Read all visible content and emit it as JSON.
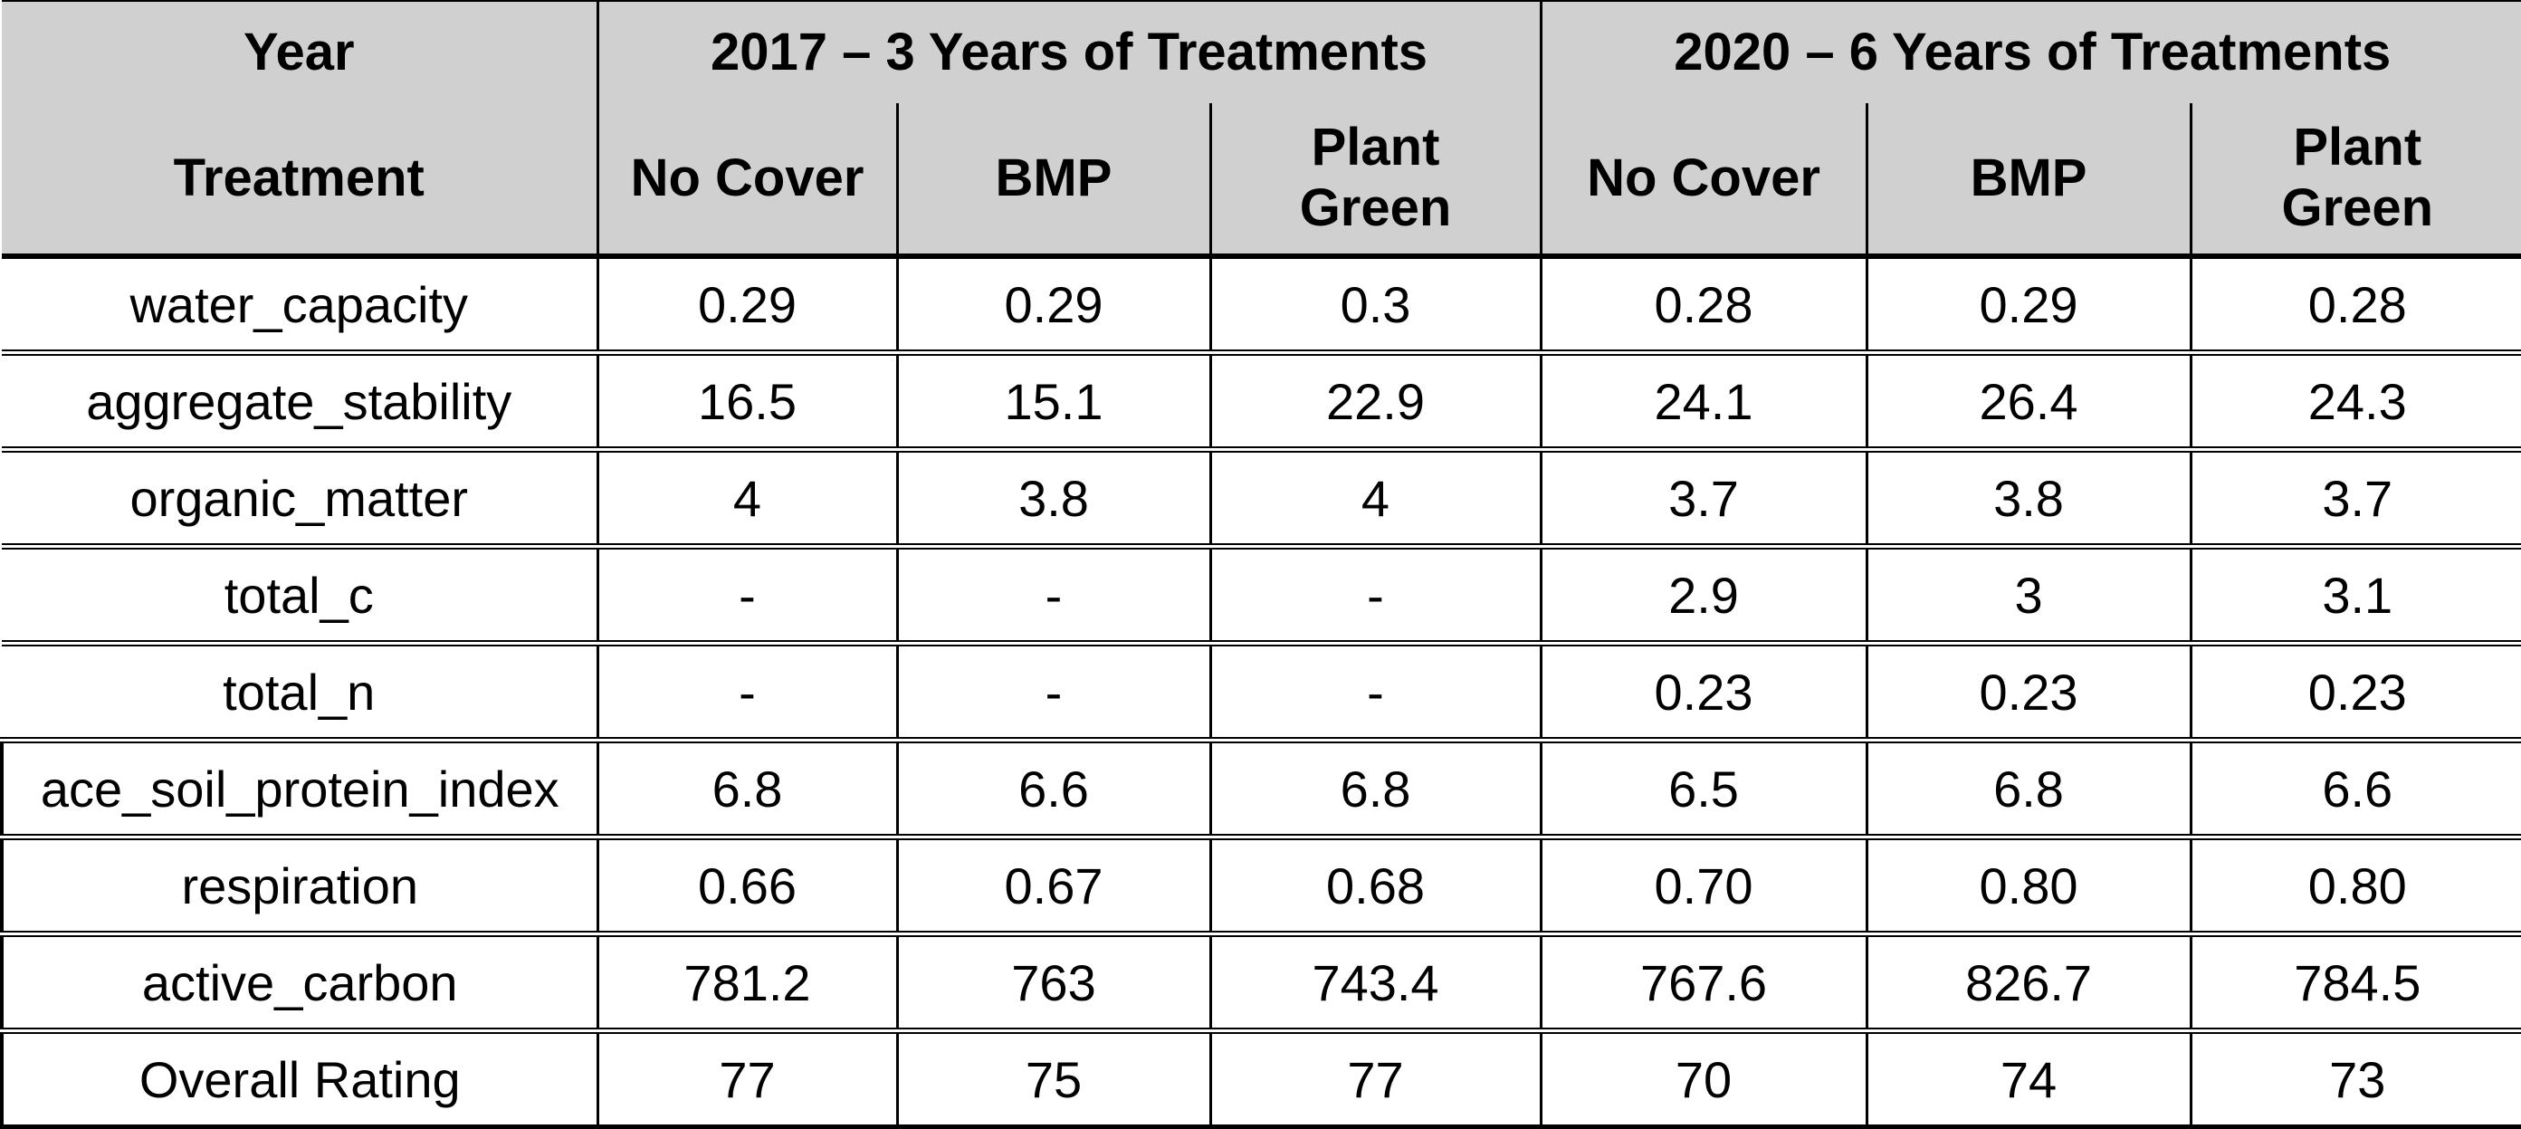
{
  "colors": {
    "header_bg": "#d0d0d0",
    "row_bg": "#ffffff",
    "border": "#000000",
    "text": "#000000"
  },
  "chart_data": {
    "type": "table",
    "header": {
      "corner_top": "Year",
      "corner_bottom": "Treatment",
      "groups": [
        {
          "label": "2017 – 3 Years of Treatments",
          "subcolumns": [
            "No Cover",
            "BMP",
            "Plant Green"
          ]
        },
        {
          "label": "2020 – 6 Years of Treatments",
          "subcolumns": [
            "No Cover",
            "BMP",
            "Plant Green"
          ]
        }
      ]
    },
    "rows": [
      {
        "label": "water_capacity",
        "values": [
          "0.29",
          "0.29",
          "0.3",
          "0.28",
          "0.29",
          "0.28"
        ]
      },
      {
        "label": "aggregate_stability",
        "values": [
          "16.5",
          "15.1",
          "22.9",
          "24.1",
          "26.4",
          "24.3"
        ]
      },
      {
        "label": "organic_matter",
        "values": [
          "4",
          "3.8",
          "4",
          "3.7",
          "3.8",
          "3.7"
        ]
      },
      {
        "label": "total_c",
        "values": [
          "-",
          "-",
          "-",
          "2.9",
          "3",
          "3.1"
        ]
      },
      {
        "label": "total_n",
        "values": [
          "-",
          "-",
          "-",
          "0.23",
          "0.23",
          "0.23"
        ]
      },
      {
        "label": "ace_soil_protein_index",
        "values": [
          "6.8",
          "6.6",
          "6.8",
          "6.5",
          "6.8",
          "6.6"
        ]
      },
      {
        "label": "respiration",
        "values": [
          "0.66",
          "0.67",
          "0.68",
          "0.70",
          "0.80",
          "0.80"
        ]
      },
      {
        "label": "active_carbon",
        "values": [
          "781.2",
          "763",
          "743.4",
          "767.6",
          "826.7",
          "784.5"
        ]
      },
      {
        "label": "Overall Rating",
        "values": [
          "77",
          "75",
          "77",
          "70",
          "74",
          "73"
        ]
      }
    ]
  }
}
